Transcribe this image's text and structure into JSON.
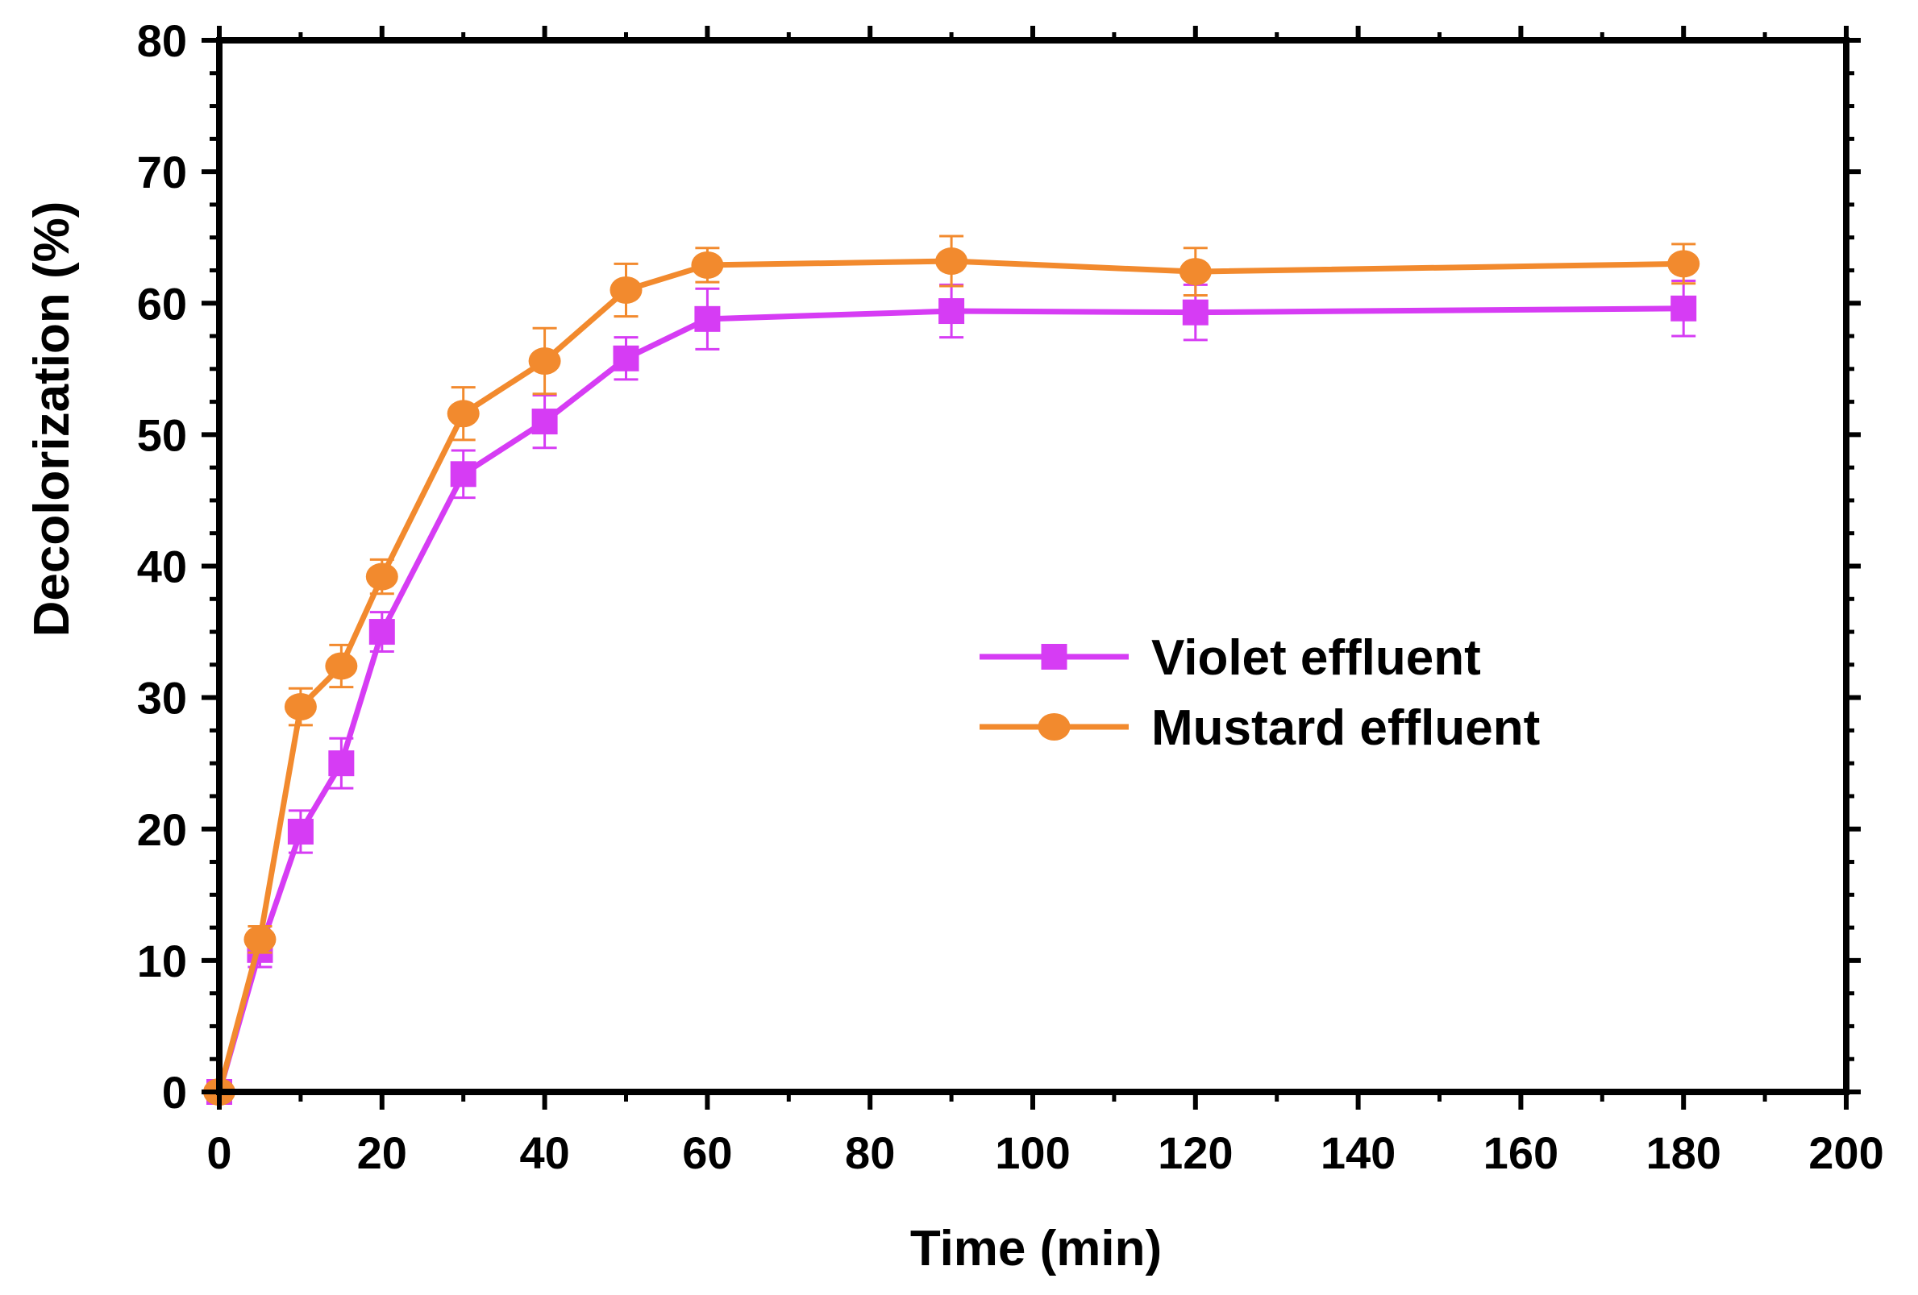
{
  "chart_data": {
    "type": "line",
    "title": "",
    "xlabel": "Time (min)",
    "ylabel": "Decolorization (%)",
    "xlim": [
      0,
      200
    ],
    "ylim": [
      0,
      80
    ],
    "xticks": [
      0,
      20,
      40,
      60,
      80,
      100,
      120,
      140,
      160,
      180,
      200
    ],
    "yticks": [
      0,
      10,
      20,
      30,
      40,
      50,
      60,
      70,
      80
    ],
    "grid": false,
    "legend_position": "center-right",
    "x": [
      0,
      5,
      10,
      15,
      20,
      30,
      40,
      50,
      60,
      90,
      120,
      180
    ],
    "series": [
      {
        "name": "Violet effluent",
        "color": "#d63cf4",
        "marker": "square",
        "values": [
          0,
          10.8,
          19.8,
          25.0,
          35.0,
          47.0,
          51.0,
          55.8,
          58.8,
          59.4,
          59.3,
          59.6
        ],
        "errors": [
          0.3,
          1.3,
          1.6,
          1.9,
          1.5,
          1.8,
          2.0,
          1.6,
          2.3,
          2.0,
          2.1,
          2.1
        ]
      },
      {
        "name": "Mustard effluent",
        "color": "#f28a2e",
        "marker": "circle",
        "values": [
          0,
          11.6,
          29.3,
          32.4,
          39.2,
          51.6,
          55.6,
          61.0,
          62.9,
          63.2,
          62.4,
          63.0
        ],
        "errors": [
          0.3,
          1.0,
          1.4,
          1.6,
          1.3,
          2.0,
          2.5,
          2.0,
          1.3,
          1.9,
          1.8,
          1.5
        ]
      }
    ]
  }
}
